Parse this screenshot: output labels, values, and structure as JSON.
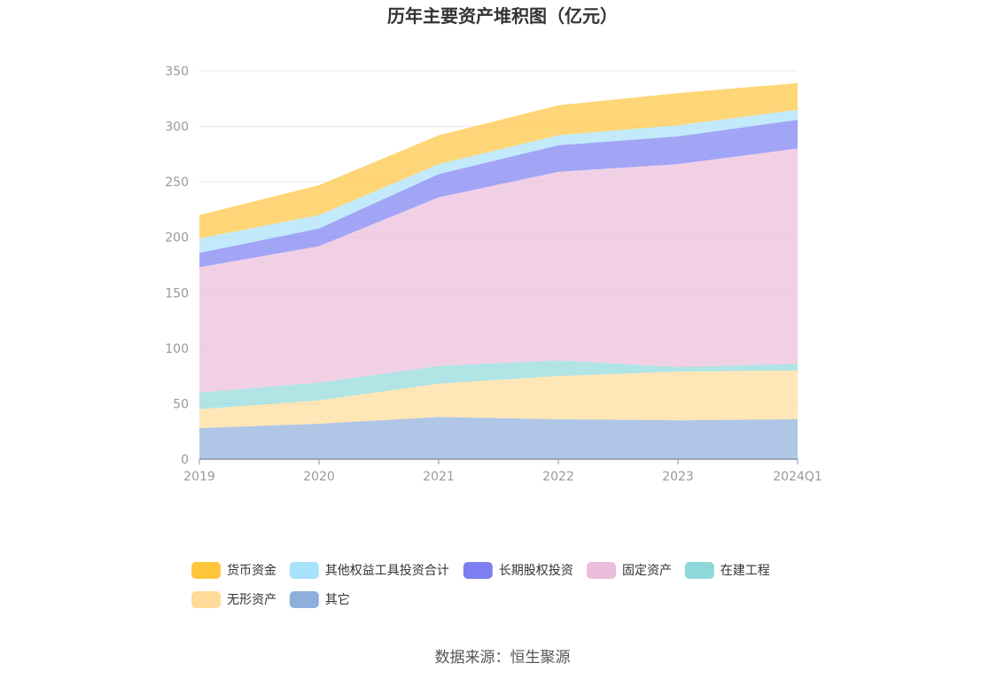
{
  "chart_data": {
    "type": "area",
    "stacked": true,
    "title": "历年主要资产堆积图（亿元）",
    "xlabel": "",
    "ylabel": "",
    "categories": [
      "2019",
      "2020",
      "2021",
      "2022",
      "2023",
      "2024Q1"
    ],
    "ylim": [
      0,
      350
    ],
    "yticks": [
      0,
      50,
      100,
      150,
      200,
      250,
      300,
      350
    ],
    "grid": true,
    "legend_position": "bottom",
    "series": [
      {
        "name": "其它",
        "color": "#8EAEDC",
        "values": [
          28,
          32,
          38,
          36,
          35,
          36
        ]
      },
      {
        "name": "无形资产",
        "color": "#FFDB99",
        "values": [
          17,
          21,
          30,
          39,
          44,
          44
        ]
      },
      {
        "name": "在建工程",
        "color": "#8ED8DA",
        "values": [
          15,
          16,
          16,
          14,
          4,
          6
        ]
      },
      {
        "name": "固定资产",
        "color": "#EBBCDB",
        "values": [
          113,
          123,
          152,
          170,
          183,
          194
        ]
      },
      {
        "name": "长期股权投资",
        "color": "#7B7FF2",
        "values": [
          13,
          16,
          21,
          24,
          25,
          26
        ]
      },
      {
        "name": "其他权益工具投资合计",
        "color": "#A8E1FA",
        "values": [
          13,
          12,
          9,
          9,
          10,
          9
        ]
      },
      {
        "name": "货币资金",
        "color": "#FFC53D",
        "values": [
          21,
          27,
          26,
          27,
          29,
          24
        ]
      }
    ],
    "legend_order": [
      "货币资金",
      "其他权益工具投资合计",
      "长期股权投资",
      "固定资产",
      "在建工程",
      "无形资产",
      "其它"
    ]
  },
  "source": "数据来源：恒生聚源"
}
